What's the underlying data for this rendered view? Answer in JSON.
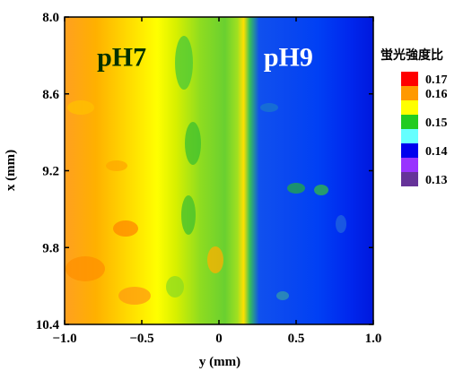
{
  "chart_data": {
    "type": "heatmap",
    "title": "",
    "xlabel": "y (mm)",
    "ylabel": "x (mm)",
    "xlim": [
      -1.0,
      1.0
    ],
    "ylim": [
      10.4,
      8.0
    ],
    "x_ticks": [
      -1.0,
      -0.5,
      0,
      0.5,
      1.0
    ],
    "x_tick_labels": [
      "−1.0",
      "−0.5",
      "0",
      "0.5",
      "1.0"
    ],
    "y_ticks": [
      8.0,
      8.6,
      9.2,
      9.8,
      10.4
    ],
    "y_tick_labels": [
      "8.0",
      "8.6",
      "9.2",
      "9.8",
      "10.4"
    ],
    "y_axis_inverted": true,
    "annotations": [
      {
        "text": "pH7",
        "x": -0.63,
        "y": 8.38,
        "color": "#003000"
      },
      {
        "text": "pH9",
        "x": 0.45,
        "y": 8.38,
        "color": "#ffffff"
      }
    ],
    "legend": {
      "title": "蛍光強度比",
      "placement": "right",
      "entries": [
        {
          "label": "0.17",
          "color": "#ff0000"
        },
        {
          "label": "0.16",
          "color": "#ff9900"
        },
        {
          "label": "",
          "color": "#ffff00"
        },
        {
          "label": "0.15",
          "color": "#22cc22"
        },
        {
          "label": "",
          "color": "#66ffff"
        },
        {
          "label": "0.14",
          "color": "#0000ee"
        },
        {
          "label": "",
          "color": "#9933ff"
        },
        {
          "label": "0.13",
          "color": "#663399"
        }
      ]
    },
    "value_bands": [
      {
        "y_from": -1.0,
        "y_to": -0.6,
        "value": 0.162,
        "note": "orange-yellow"
      },
      {
        "y_from": -0.6,
        "y_to": -0.35,
        "value": 0.158,
        "note": "yellow"
      },
      {
        "y_from": -0.35,
        "y_to": 0.05,
        "value": 0.153,
        "note": "green-yellow"
      },
      {
        "y_from": 0.05,
        "y_to": 0.15,
        "value": 0.147,
        "note": "transition"
      },
      {
        "y_from": 0.15,
        "y_to": 1.0,
        "value": 0.14,
        "note": "blue"
      }
    ]
  }
}
